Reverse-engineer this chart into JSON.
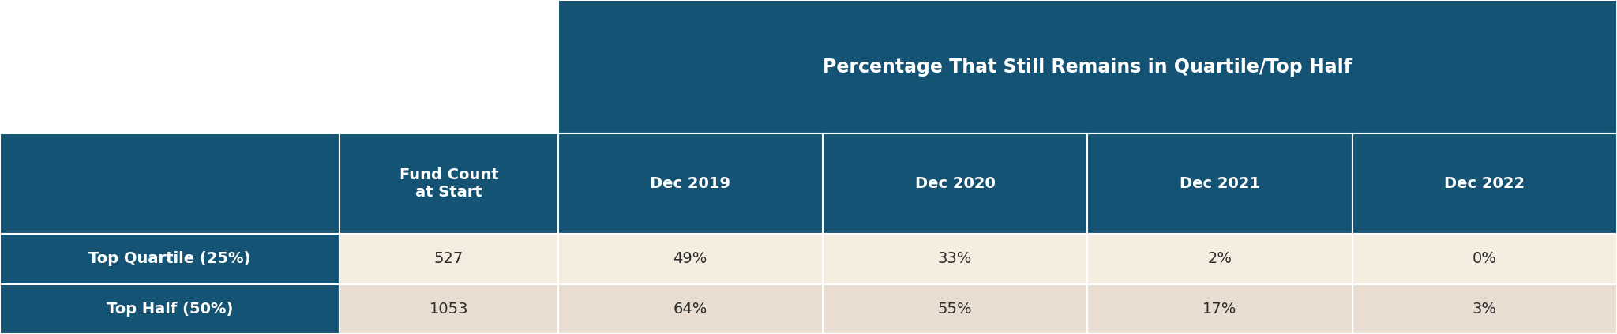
{
  "title": "Percentage That Still Remains in Quartile/Top Half",
  "col_headers": [
    "Fund Count\nat Start",
    "Dec 2019",
    "Dec 2020",
    "Dec 2021",
    "Dec 2022"
  ],
  "row_labels": [
    "Top Quartile (25%)",
    "Top Half (50%)"
  ],
  "data": [
    [
      "527",
      "49%",
      "33%",
      "2%",
      "0%"
    ],
    [
      "1053",
      "64%",
      "55%",
      "17%",
      "3%"
    ]
  ],
  "dark_blue": "#145374",
  "light_cream1": "#f5ede0",
  "light_cream2": "#e8ddd0",
  "white": "#ffffff",
  "text_white": "#ffffff",
  "text_dark": "#2c2c2c",
  "border_color": "#ffffff"
}
